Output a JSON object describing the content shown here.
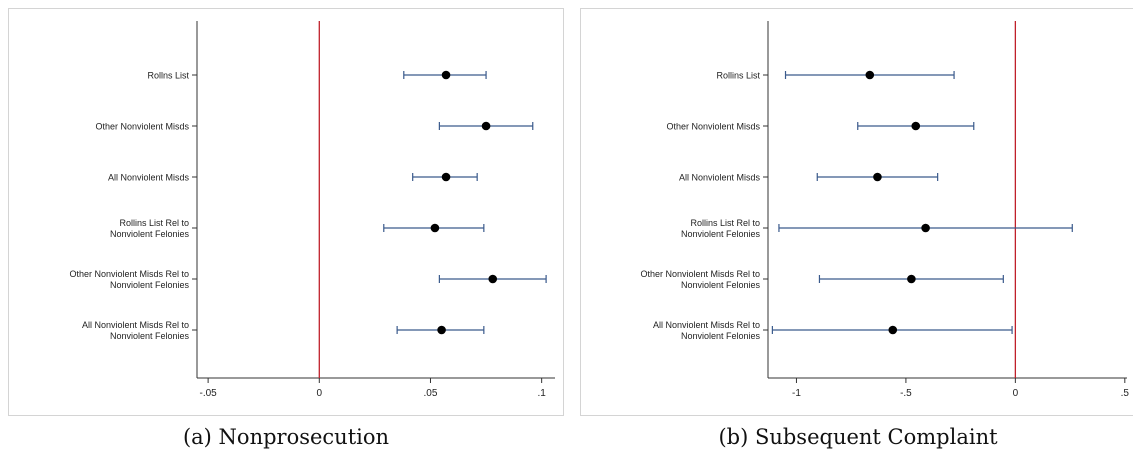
{
  "chart_data": [
    {
      "type": "scatter",
      "subtype": "coefficient-plot",
      "caption": "(a) Nonprosecution",
      "categories": [
        [
          "Rollns List"
        ],
        [
          "Other Nonviolent Misds"
        ],
        [
          "All Nonviolent Misds"
        ],
        [
          "Rollins List Rel to",
          "Nonviolent Felonies"
        ],
        [
          "Other Nonviolent Misds Rel to",
          "Nonviolent Felonies"
        ],
        [
          "All Nonviolent Misds Rel to",
          "Nonviolent Felonies"
        ]
      ],
      "estimates": [
        0.057,
        0.075,
        0.057,
        0.052,
        0.078,
        0.055
      ],
      "ci_low": [
        0.038,
        0.054,
        0.042,
        0.029,
        0.054,
        0.035
      ],
      "ci_high": [
        0.075,
        0.096,
        0.071,
        0.074,
        0.102,
        0.074
      ],
      "xlim": [
        -0.055,
        0.106
      ],
      "xticks": [
        -0.05,
        0,
        0.05,
        0.1
      ],
      "xtick_labels": [
        "-.05",
        "0",
        ".05",
        ".1"
      ],
      "reference_line": 0,
      "grid": false,
      "colors": {
        "ci": "#3a5a8c",
        "point": "#000000",
        "reference": "#c0202a",
        "axis": "#333333"
      }
    },
    {
      "type": "scatter",
      "subtype": "coefficient-plot",
      "caption": "(b) Subsequent Complaint",
      "categories": [
        [
          "Rollins List"
        ],
        [
          "Other Nonviolent Misds"
        ],
        [
          "All Nonviolent Misds"
        ],
        [
          "Rollins List Rel to",
          "Nonviolent Felonies"
        ],
        [
          "Other Nonviolent Misds Rel to",
          "Nonviolent Felonies"
        ],
        [
          "All Nonviolent Misds Rel to",
          "Nonviolent Felonies"
        ]
      ],
      "estimates": [
        -0.665,
        -0.455,
        -0.63,
        -0.41,
        -0.475,
        -0.56
      ],
      "ci_low": [
        -1.05,
        -0.72,
        -0.905,
        -1.08,
        -0.895,
        -1.11
      ],
      "ci_high": [
        -0.28,
        -0.19,
        -0.355,
        0.26,
        -0.055,
        -0.015
      ],
      "xlim": [
        -1.13,
        0.51
      ],
      "xticks": [
        -1,
        -0.5,
        0,
        0.5
      ],
      "xtick_labels": [
        "-1",
        "-.5",
        "0",
        ".5"
      ],
      "reference_line": 0,
      "grid": false,
      "colors": {
        "ci": "#3a5a8c",
        "point": "#000000",
        "reference": "#c0202a",
        "axis": "#333333"
      }
    }
  ]
}
